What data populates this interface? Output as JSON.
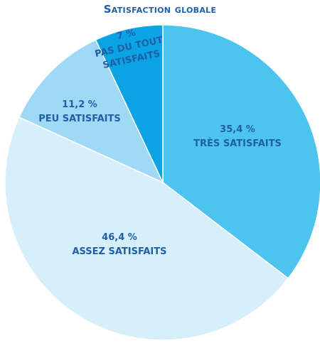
{
  "chart_data": {
    "type": "pie",
    "title": "Satisfaction globale",
    "slices": [
      {
        "label": "TRÈS SATISFAITS",
        "value": 35.4,
        "value_label": "35,4 %",
        "color": "#4dc3ef"
      },
      {
        "label": "ASSEZ SATISFAITS",
        "value": 46.4,
        "value_label": "46,4 %",
        "color": "#d7eefb"
      },
      {
        "label": "PEU SATISFAITS",
        "value": 11.2,
        "value_label": "11,2 %",
        "color": "#9fd9f6"
      },
      {
        "label": "PAS DU TOUT SATISFAITS",
        "value": 7.0,
        "value_label": "7 %",
        "color": "#0aa3e3"
      }
    ],
    "start": "12 o'clock",
    "direction": "clockwise",
    "legend": "none"
  }
}
